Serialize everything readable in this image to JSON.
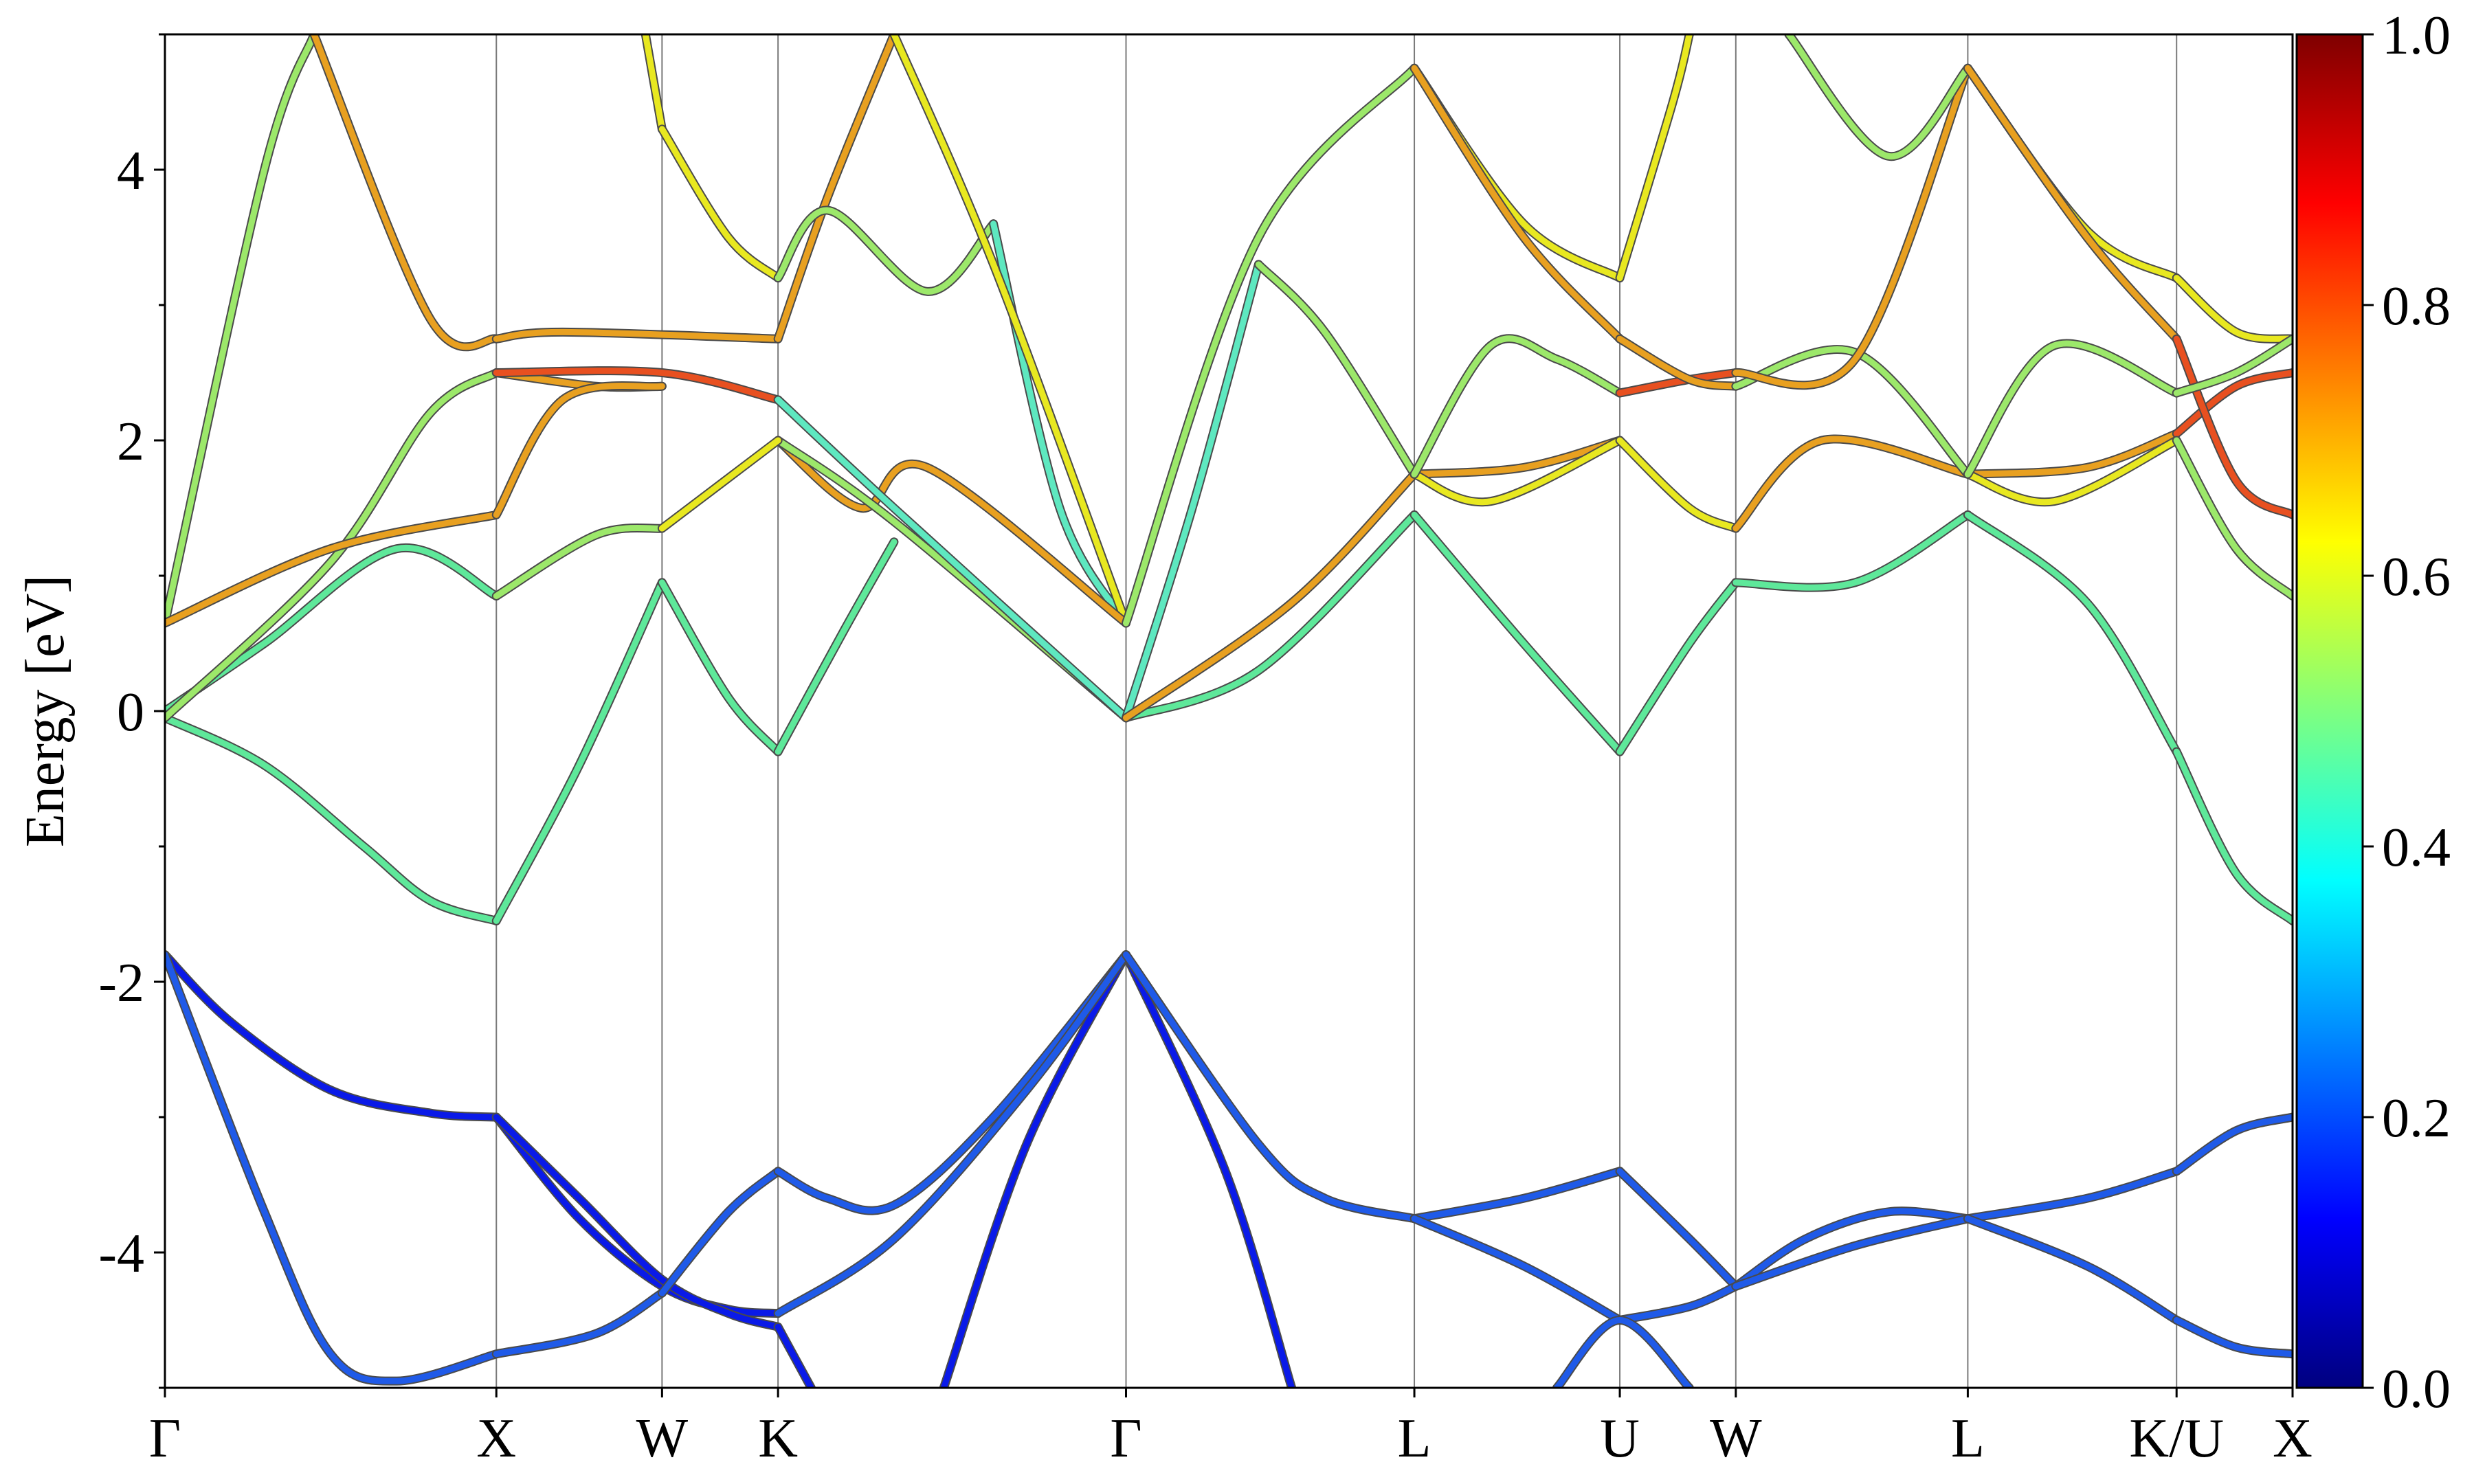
{
  "chart_data": {
    "type": "line",
    "title": "",
    "xlabel": "",
    "ylabel": "Energy [eV]",
    "ylim": [
      -5,
      5
    ],
    "yticks": [
      -4,
      -2,
      0,
      2,
      4
    ],
    "ytick_labels": [
      "-4",
      "-2",
      "0",
      "2",
      "4"
    ],
    "grid": "vertical lines at k-path points",
    "k_path": [
      {
        "label": "Γ",
        "x": 0.0
      },
      {
        "label": "X",
        "x": 1.0
      },
      {
        "label": "W",
        "x": 1.5
      },
      {
        "label": "K",
        "x": 1.85
      },
      {
        "label": "Γ",
        "x": 2.9
      },
      {
        "label": "L",
        "x": 3.77
      },
      {
        "label": "U",
        "x": 4.39
      },
      {
        "label": "W",
        "x": 4.74
      },
      {
        "label": "L",
        "x": 5.44
      },
      {
        "label": "K/U",
        "x": 6.07
      },
      {
        "label": "X",
        "x": 6.42
      }
    ],
    "xlim": [
      0,
      6.42
    ],
    "colorbar": {
      "colormap": "jet",
      "range": [
        0.0,
        1.0
      ],
      "ticks": [
        "0.0",
        "0.2",
        "0.4",
        "0.6",
        "0.8",
        "1.0"
      ],
      "stops": [
        "#00007f",
        "#0000ff",
        "#007fff",
        "#00ffff",
        "#7fff7f",
        "#ffff00",
        "#ff7f00",
        "#ff0000",
        "#7f0000"
      ]
    },
    "series": [
      {
        "color": "#0a1ae8",
        "x": [
          0,
          0.2,
          0.5,
          0.8,
          1.0
        ],
        "y": [
          -1.8,
          -2.3,
          -2.8,
          -2.97,
          -3.0
        ]
      },
      {
        "color": "#0a1ae8",
        "x": [
          1.0,
          1.25,
          1.5,
          1.7,
          1.85
        ],
        "y": [
          -3.0,
          -3.75,
          -4.25,
          -4.42,
          -4.45
        ]
      },
      {
        "color": "#0a1ae8",
        "x": [
          1.0,
          1.25,
          1.5,
          1.7,
          1.85
        ],
        "y": [
          -3.0,
          -3.6,
          -4.2,
          -4.45,
          -4.55
        ]
      },
      {
        "color": "#0a1ae8",
        "x": [
          1.85,
          1.95
        ],
        "y": [
          -4.55,
          -5.0
        ]
      },
      {
        "color": "#0a1ae8",
        "x": [
          2.35,
          2.6,
          2.9
        ],
        "y": [
          -5.0,
          -3.2,
          -1.8
        ]
      },
      {
        "color": "#0a1ae8",
        "x": [
          2.9,
          3.2,
          3.4
        ],
        "y": [
          -1.8,
          -3.4,
          -5.0
        ]
      },
      {
        "color": "#1f5ae8",
        "x": [
          0,
          0.3,
          0.5,
          0.7,
          1.0
        ],
        "y": [
          -1.8,
          -3.7,
          -4.75,
          -4.95,
          -4.75
        ]
      },
      {
        "color": "#1f5ae8",
        "x": [
          1.0,
          1.3,
          1.5
        ],
        "y": [
          -4.75,
          -4.6,
          -4.3
        ]
      },
      {
        "color": "#1f5ae8",
        "x": [
          1.5,
          1.7,
          1.85
        ],
        "y": [
          -4.3,
          -3.7,
          -3.4
        ]
      },
      {
        "color": "#1f5ae8",
        "x": [
          1.85,
          2.0,
          2.2,
          2.5,
          2.9
        ],
        "y": [
          -3.4,
          -3.6,
          -3.65,
          -3.0,
          -1.8
        ]
      },
      {
        "color": "#1f5ae8",
        "x": [
          1.85,
          2.2,
          2.6,
          2.9
        ],
        "y": [
          -4.45,
          -3.9,
          -2.8,
          -1.8
        ]
      },
      {
        "color": "#1f5ae8",
        "x": [
          2.9,
          3.3,
          3.5,
          3.77
        ],
        "y": [
          -1.8,
          -3.2,
          -3.6,
          -3.75
        ]
      },
      {
        "color": "#1f5ae8",
        "x": [
          3.77,
          4.1,
          4.39
        ],
        "y": [
          -3.75,
          -3.6,
          -3.4
        ]
      },
      {
        "color": "#1f5ae8",
        "x": [
          4.39,
          4.6,
          4.74
        ],
        "y": [
          -3.4,
          -3.9,
          -4.25
        ]
      },
      {
        "color": "#1f5ae8",
        "x": [
          3.77,
          4.1,
          4.39
        ],
        "y": [
          -3.75,
          -4.1,
          -4.5
        ]
      },
      {
        "color": "#1f5ae8",
        "x": [
          4.39,
          4.6,
          4.74
        ],
        "y": [
          -4.5,
          -4.4,
          -4.25
        ]
      },
      {
        "color": "#1f5ae8",
        "x": [
          4.74,
          4.95,
          5.2,
          5.44
        ],
        "y": [
          -4.25,
          -3.9,
          -3.7,
          -3.75
        ]
      },
      {
        "color": "#1f5ae8",
        "x": [
          4.74,
          5.1,
          5.44
        ],
        "y": [
          -4.25,
          -3.95,
          -3.75
        ]
      },
      {
        "color": "#1f5ae8",
        "x": [
          5.44,
          5.8,
          6.07
        ],
        "y": [
          -3.75,
          -3.6,
          -3.4
        ]
      },
      {
        "color": "#1f5ae8",
        "x": [
          5.44,
          5.8,
          6.07
        ],
        "y": [
          -3.75,
          -4.1,
          -4.5
        ]
      },
      {
        "color": "#1f5ae8",
        "x": [
          6.07,
          6.25,
          6.42
        ],
        "y": [
          -3.4,
          -3.1,
          -3.0
        ]
      },
      {
        "color": "#1f5ae8",
        "x": [
          6.07,
          6.25,
          6.42
        ],
        "y": [
          -4.5,
          -4.7,
          -4.75
        ]
      },
      {
        "color": "#1f5ae8",
        "x": [
          4.6,
          4.39,
          4.2
        ],
        "y": [
          -5.0,
          -4.5,
          -5.0
        ]
      },
      {
        "color": "#5ee89a",
        "x": [
          0,
          0.3,
          0.6,
          0.8,
          1.0
        ],
        "y": [
          -0.05,
          -0.4,
          -1.0,
          -1.4,
          -1.55
        ]
      },
      {
        "color": "#5ee89a",
        "x": [
          1.0,
          1.25,
          1.5
        ],
        "y": [
          -1.55,
          -0.4,
          0.95
        ]
      },
      {
        "color": "#5ee89a",
        "x": [
          1.5,
          1.7,
          1.85
        ],
        "y": [
          0.95,
          0.1,
          -0.3
        ]
      },
      {
        "color": "#5ee89a",
        "x": [
          1.85,
          2.05,
          2.2
        ],
        "y": [
          -0.3,
          0.6,
          1.25
        ]
      },
      {
        "color": "#5ee89a",
        "x": [
          0,
          0.3,
          0.7,
          1.0
        ],
        "y": [
          0.0,
          0.5,
          1.2,
          0.85
        ]
      },
      {
        "color": "#9ce86a",
        "x": [
          1.0,
          1.3,
          1.5
        ],
        "y": [
          0.85,
          1.3,
          1.35
        ]
      },
      {
        "color": "#5ee89a",
        "x": [
          2.9,
          3.3,
          3.77
        ],
        "y": [
          -0.05,
          0.3,
          1.45
        ]
      },
      {
        "color": "#5ee89a",
        "x": [
          3.77,
          4.1,
          4.39
        ],
        "y": [
          1.45,
          0.5,
          -0.3
        ]
      },
      {
        "color": "#5ee89a",
        "x": [
          4.39,
          4.6,
          4.74
        ],
        "y": [
          -0.3,
          0.5,
          0.95
        ]
      },
      {
        "color": "#5ee89a",
        "x": [
          4.74,
          5.1,
          5.44
        ],
        "y": [
          0.95,
          0.95,
          1.45
        ]
      },
      {
        "color": "#5ee89a",
        "x": [
          5.44,
          5.8,
          6.07
        ],
        "y": [
          1.45,
          0.8,
          -0.3
        ]
      },
      {
        "color": "#5ee89a",
        "x": [
          6.07,
          6.25,
          6.42
        ],
        "y": [
          -0.3,
          -1.2,
          -1.55
        ]
      },
      {
        "color": "#9ce86a",
        "x": [
          0,
          0.3,
          0.45
        ],
        "y": [
          0.65,
          4.0,
          5.0
        ]
      },
      {
        "color": "#9ce86a",
        "x": [
          0,
          0.5,
          0.8,
          1.0
        ],
        "y": [
          -0.05,
          1.1,
          2.2,
          2.5
        ]
      },
      {
        "color": "#e8a020",
        "x": [
          0,
          0.5,
          1.0
        ],
        "y": [
          0.65,
          1.2,
          1.45
        ]
      },
      {
        "color": "#e8a020",
        "x": [
          1.0,
          1.3,
          1.5
        ],
        "y": [
          2.5,
          2.4,
          2.4
        ]
      },
      {
        "color": "#e8a020",
        "x": [
          1.0,
          1.2,
          1.5
        ],
        "y": [
          1.45,
          2.3,
          2.4
        ]
      },
      {
        "color": "#e8a020",
        "x": [
          0.45,
          0.8,
          1.0
        ],
        "y": [
          5.0,
          2.9,
          2.75
        ]
      },
      {
        "color": "#e8a020",
        "x": [
          1.0,
          1.2,
          1.85
        ],
        "y": [
          2.75,
          2.8,
          2.75
        ]
      },
      {
        "color": "#e85020",
        "x": [
          1.0,
          1.5,
          1.85
        ],
        "y": [
          2.5,
          2.5,
          2.3
        ]
      },
      {
        "color": "#e8a020",
        "x": [
          1.85,
          2.0,
          2.2
        ],
        "y": [
          2.75,
          3.8,
          5.0
        ]
      },
      {
        "color": "#e8e820",
        "x": [
          1.45,
          1.5
        ],
        "y": [
          5.0,
          4.3
        ]
      },
      {
        "color": "#e8e820",
        "x": [
          1.5,
          1.7,
          1.85
        ],
        "y": [
          4.3,
          3.5,
          3.2
        ]
      },
      {
        "color": "#9ce86a",
        "x": [
          1.85,
          2.0,
          2.3,
          2.5
        ],
        "y": [
          3.2,
          3.7,
          3.1,
          3.6
        ]
      },
      {
        "color": "#5ee8c0",
        "x": [
          2.5,
          2.7,
          2.9
        ],
        "y": [
          3.6,
          1.5,
          0.65
        ]
      },
      {
        "color": "#e8e820",
        "x": [
          2.2,
          2.5,
          2.9
        ],
        "y": [
          5.0,
          3.3,
          0.65
        ]
      },
      {
        "color": "#e8a020",
        "x": [
          1.85,
          2.1,
          2.3,
          2.9
        ],
        "y": [
          2.0,
          1.5,
          1.8,
          0.65
        ]
      },
      {
        "color": "#9ce86a",
        "x": [
          1.85,
          2.2,
          2.9
        ],
        "y": [
          2.0,
          1.4,
          -0.05
        ]
      },
      {
        "color": "#e8e820",
        "x": [
          1.5,
          1.85
        ],
        "y": [
          1.35,
          2.0
        ]
      },
      {
        "color": "#5ee8c0",
        "x": [
          1.85,
          2.2,
          2.9
        ],
        "y": [
          2.3,
          1.5,
          -0.05
        ]
      },
      {
        "color": "#9ce86a",
        "x": [
          2.9,
          3.3,
          3.77
        ],
        "y": [
          0.65,
          3.5,
          4.75
        ]
      },
      {
        "color": "#5ee8c0",
        "x": [
          2.9,
          3.1,
          3.3
        ],
        "y": [
          -0.05,
          1.5,
          3.3
        ]
      },
      {
        "color": "#9ce86a",
        "x": [
          3.3,
          3.5,
          3.77
        ],
        "y": [
          3.3,
          2.8,
          1.75
        ]
      },
      {
        "color": "#e8a020",
        "x": [
          2.9,
          3.4,
          3.77
        ],
        "y": [
          -0.05,
          0.8,
          1.75
        ]
      },
      {
        "color": "#e8a020",
        "x": [
          3.77,
          4.1,
          4.39
        ],
        "y": [
          1.75,
          1.8,
          2.0
        ]
      },
      {
        "color": "#e8e820",
        "x": [
          3.77,
          4.0,
          4.39
        ],
        "y": [
          1.75,
          1.55,
          2.0
        ]
      },
      {
        "color": "#9ce86a",
        "x": [
          3.77,
          4.0,
          4.2,
          4.39
        ],
        "y": [
          1.75,
          2.7,
          2.6,
          2.35
        ]
      },
      {
        "color": "#e8e820",
        "x": [
          3.77,
          4.1,
          4.39
        ],
        "y": [
          4.75,
          3.6,
          3.2
        ]
      },
      {
        "color": "#e8a020",
        "x": [
          3.77,
          4.1,
          4.39
        ],
        "y": [
          4.75,
          3.5,
          2.75
        ]
      },
      {
        "color": "#e8e820",
        "x": [
          4.39,
          4.55,
          4.6
        ],
        "y": [
          3.2,
          4.5,
          5.0
        ]
      },
      {
        "color": "#e85020",
        "x": [
          4.39,
          4.6,
          4.74
        ],
        "y": [
          2.35,
          2.45,
          2.5
        ]
      },
      {
        "color": "#e8a020",
        "x": [
          4.39,
          4.6,
          4.74
        ],
        "y": [
          2.75,
          2.45,
          2.4
        ]
      },
      {
        "color": "#e8e820",
        "x": [
          4.39,
          4.6,
          4.74
        ],
        "y": [
          2.0,
          1.5,
          1.35
        ]
      },
      {
        "color": "#e8a020",
        "x": [
          4.74,
          5.0,
          5.44
        ],
        "y": [
          1.35,
          2.0,
          1.75
        ]
      },
      {
        "color": "#9ce86a",
        "x": [
          4.74,
          5.1,
          5.44
        ],
        "y": [
          2.4,
          2.65,
          1.75
        ]
      },
      {
        "color": "#e8a020",
        "x": [
          4.74,
          5.1,
          5.44
        ],
        "y": [
          2.5,
          2.6,
          4.75
        ]
      },
      {
        "color": "#9ce86a",
        "x": [
          4.9,
          5.2,
          5.44
        ],
        "y": [
          5.0,
          4.1,
          4.75
        ]
      },
      {
        "color": "#e8a020",
        "x": [
          5.44,
          5.8,
          6.07
        ],
        "y": [
          1.75,
          1.8,
          2.05
        ]
      },
      {
        "color": "#e8e820",
        "x": [
          5.44,
          5.7,
          6.07
        ],
        "y": [
          1.75,
          1.55,
          2.0
        ]
      },
      {
        "color": "#9ce86a",
        "x": [
          5.44,
          5.7,
          6.07
        ],
        "y": [
          1.75,
          2.7,
          2.35
        ]
      },
      {
        "color": "#e8e820",
        "x": [
          5.44,
          5.8,
          6.07
        ],
        "y": [
          4.75,
          3.55,
          3.2
        ]
      },
      {
        "color": "#e8a020",
        "x": [
          5.44,
          5.8,
          6.07
        ],
        "y": [
          4.75,
          3.5,
          2.75
        ]
      },
      {
        "color": "#e8e820",
        "x": [
          6.07,
          6.25,
          6.42
        ],
        "y": [
          3.2,
          2.8,
          2.75
        ]
      },
      {
        "color": "#e85020",
        "x": [
          6.07,
          6.25,
          6.42
        ],
        "y": [
          2.05,
          2.4,
          2.5
        ]
      },
      {
        "color": "#e85020",
        "x": [
          6.07,
          6.25,
          6.42
        ],
        "y": [
          2.75,
          1.7,
          1.45
        ]
      },
      {
        "color": "#9ce86a",
        "x": [
          6.07,
          6.25,
          6.42
        ],
        "y": [
          2.0,
          1.2,
          0.85
        ]
      },
      {
        "color": "#9ce86a",
        "x": [
          6.07,
          6.25,
          6.42
        ],
        "y": [
          2.35,
          2.5,
          2.75
        ]
      }
    ]
  }
}
